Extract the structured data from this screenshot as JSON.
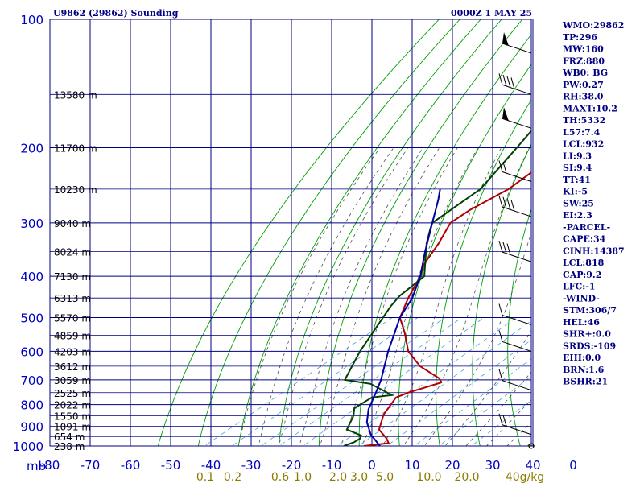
{
  "header": {
    "title": "U9862 (29862) Sounding",
    "time": "0000Z  1 MAY 25"
  },
  "indices": [
    "WMO:29862",
    "TP:296",
    "MW:160",
    "FRZ:880",
    "WB0: BG",
    "PW:0.27",
    "RH:38.0",
    "MAXT:10.2",
    "TH:5332",
    "L57:7.4",
    "LCL:932",
    "LI:9.3",
    "SI:9.4",
    "TT:41",
    "KI:-5",
    "SW:25",
    "EI:2.3",
    "-PARCEL-",
    "CAPE:34",
    "CINH:14387",
    "LCL:818",
    "CAP:9.2",
    "LFC:-1",
    "-WIND-",
    "STM:306/7",
    "HEL:46",
    "SHR+:0.0",
    "SRDS:-109",
    "EHI:0.0",
    "BRN:1.6",
    "BSHR:21"
  ],
  "colors": {
    "grid": "#000080",
    "dry_adiabat": "#00a000",
    "moist_adiabat": "#505050",
    "mixing_ratio": "#4aa0d8",
    "temperature": "#b00000",
    "dewpoint": "#004000",
    "parcel": "#0000a0",
    "wind": "#000000"
  },
  "chart_data": {
    "type": "line",
    "title": "U9862 (29862) Sounding",
    "xlabel": "",
    "ylabel": "mb",
    "y_scale": "log",
    "ylim": [
      1000,
      100
    ],
    "xlim": [
      -80,
      0
    ],
    "x_ticks": [
      "-80",
      "-70",
      "-60",
      "-50",
      "-40",
      "-30",
      "-20",
      "-10",
      "0",
      "10",
      "20",
      "30",
      "40",
      "0"
    ],
    "pressure_ticks": [
      100,
      200,
      300,
      400,
      500,
      600,
      700,
      800,
      900,
      1000
    ],
    "height_labels": [
      {
        "p": 150,
        "label": "13580 m"
      },
      {
        "p": 200,
        "label": "11700 m"
      },
      {
        "p": 250,
        "label": "10230 m"
      },
      {
        "p": 300,
        "label": "9040 m"
      },
      {
        "p": 350,
        "label": "8024 m"
      },
      {
        "p": 400,
        "label": "7130 m"
      },
      {
        "p": 450,
        "label": "6313 m"
      },
      {
        "p": 500,
        "label": "5570 m"
      },
      {
        "p": 550,
        "label": "4859 m"
      },
      {
        "p": 600,
        "label": "4203 m"
      },
      {
        "p": 650,
        "label": "3612 m"
      },
      {
        "p": 700,
        "label": "3059 m"
      },
      {
        "p": 750,
        "label": "2525 m"
      },
      {
        "p": 800,
        "label": "2022 m"
      },
      {
        "p": 850,
        "label": "1550 m"
      },
      {
        "p": 900,
        "label": "1091 m"
      },
      {
        "p": 950,
        "label": "654 m"
      },
      {
        "p": 1000,
        "label": "238 m"
      }
    ],
    "mixing_ratio_labels": [
      "0.1",
      "0.2",
      "0.6",
      "1.0",
      "2.0",
      "3.0",
      "5.0",
      "10.0",
      "20.0",
      "40g/kg"
    ],
    "series": [
      {
        "id": "temperature",
        "points": [
          {
            "p": 1000,
            "t": -2
          },
          {
            "p": 985,
            "t": 3
          },
          {
            "p": 960,
            "t": 0.5
          },
          {
            "p": 915,
            "t": -5
          },
          {
            "p": 845,
            "t": -10
          },
          {
            "p": 770,
            "t": -14
          },
          {
            "p": 750,
            "t": -13
          },
          {
            "p": 710,
            "t": -9
          },
          {
            "p": 695,
            "t": -11
          },
          {
            "p": 650,
            "t": -21
          },
          {
            "p": 600,
            "t": -30
          },
          {
            "p": 540,
            "t": -39
          },
          {
            "p": 500,
            "t": -46
          },
          {
            "p": 450,
            "t": -52
          },
          {
            "p": 400,
            "t": -58
          },
          {
            "p": 375,
            "t": -62
          },
          {
            "p": 335,
            "t": -67
          },
          {
            "p": 300,
            "t": -72.5
          },
          {
            "p": 280,
            "t": -73
          },
          {
            "p": 250,
            "t": -72
          },
          {
            "p": 200,
            "t": -75
          },
          {
            "p": 150,
            "t": -79
          },
          {
            "p": 115,
            "t": -84
          }
        ]
      },
      {
        "id": "dewpoint",
        "points": [
          {
            "p": 1000,
            "t": -7
          },
          {
            "p": 980,
            "t": -6
          },
          {
            "p": 960,
            "t": -6
          },
          {
            "p": 945,
            "t": -7
          },
          {
            "p": 915,
            "t": -13
          },
          {
            "p": 850,
            "t": -17
          },
          {
            "p": 815,
            "t": -20
          },
          {
            "p": 770,
            "t": -20
          },
          {
            "p": 760,
            "t": -16
          },
          {
            "p": 715,
            "t": -26
          },
          {
            "p": 700,
            "t": -34
          },
          {
            "p": 600,
            "t": -42
          },
          {
            "p": 470,
            "t": -53
          },
          {
            "p": 445,
            "t": -55
          },
          {
            "p": 400,
            "t": -57
          },
          {
            "p": 335,
            "t": -70
          },
          {
            "p": 310,
            "t": -75
          },
          {
            "p": 300,
            "t": -77
          },
          {
            "p": 250,
            "t": -79
          },
          {
            "p": 200,
            "t": -87
          },
          {
            "p": 170,
            "t": -93
          },
          {
            "p": 150,
            "t": -100
          },
          {
            "p": 135,
            "t": -107
          },
          {
            "p": 113,
            "t": -120
          }
        ]
      },
      {
        "id": "parcel",
        "points": [
          {
            "p": 1000,
            "t": 2
          },
          {
            "p": 940,
            "t": -5
          },
          {
            "p": 880,
            "t": -11
          },
          {
            "p": 820,
            "t": -16
          },
          {
            "p": 750,
            "t": -21
          },
          {
            "p": 700,
            "t": -25
          },
          {
            "p": 600,
            "t": -35
          },
          {
            "p": 500,
            "t": -46
          },
          {
            "p": 450,
            "t": -51
          },
          {
            "p": 400,
            "t": -58
          },
          {
            "p": 350,
            "t": -67
          },
          {
            "p": 300,
            "t": -77
          },
          {
            "p": 265,
            "t": -85
          },
          {
            "p": 250,
            "t": -89
          }
        ]
      }
    ],
    "wind_levels": [
      {
        "p": 120,
        "kind": "pennant"
      },
      {
        "p": 150,
        "kind": "barbs4"
      },
      {
        "p": 180,
        "kind": "pennant"
      },
      {
        "p": 240,
        "kind": "barbs2"
      },
      {
        "p": 290,
        "kind": "barbs4"
      },
      {
        "p": 370,
        "kind": "barbs3"
      },
      {
        "p": 520,
        "kind": "barbs1"
      },
      {
        "p": 600,
        "kind": "barbs1"
      },
      {
        "p": 740,
        "kind": "barbs1"
      },
      {
        "p": 940,
        "kind": "barbs2"
      },
      {
        "p": 1000,
        "kind": "calm"
      }
    ]
  }
}
